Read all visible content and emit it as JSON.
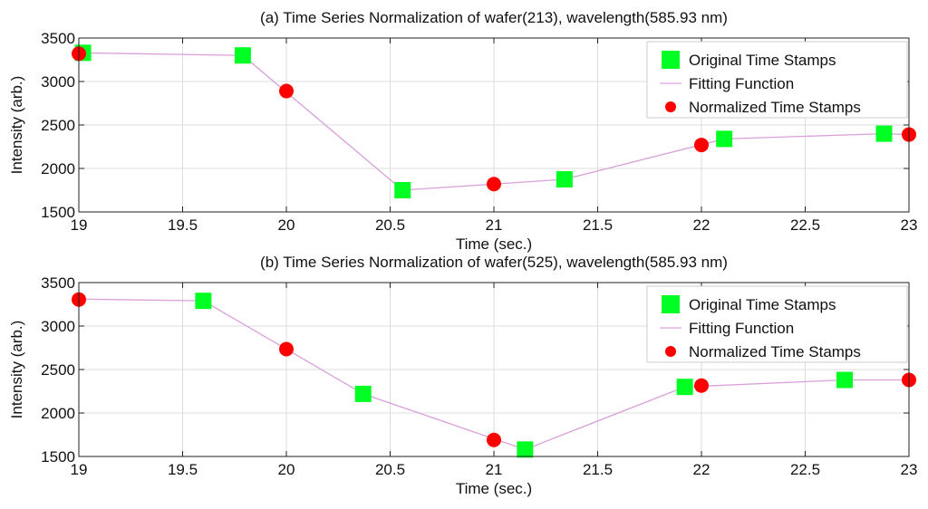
{
  "chart_data": [
    {
      "type": "line",
      "title": "(a) Time Series Normalization of wafer(213), wavelength(585.93 nm)",
      "xlabel": "Time (sec.)",
      "ylabel": "Intensity (arb.)",
      "xlim": [
        19,
        23
      ],
      "ylim": [
        1500,
        3500
      ],
      "xticks": [
        19,
        19.5,
        20,
        20.5,
        21,
        21.5,
        22,
        22.5,
        23
      ],
      "xtick_labels": [
        "19",
        "19.5",
        "20",
        "20.5",
        "21",
        "21.5",
        "22",
        "22.5",
        "23"
      ],
      "yticks": [
        1500,
        2000,
        2500,
        3000,
        3500
      ],
      "ytick_labels": [
        "1500",
        "2000",
        "2500",
        "3000",
        "3500"
      ],
      "grid": true,
      "legend_position": "top-right",
      "series": [
        {
          "name": "Original Time Stamps",
          "marker": "square",
          "color": "#00ff22",
          "x": [
            19.02,
            19.79,
            20.56,
            21.34,
            22.11,
            22.88
          ],
          "y": [
            3330,
            3300,
            1750,
            1875,
            2340,
            2400
          ]
        },
        {
          "name": "Fitting Function",
          "marker": "none",
          "color": "#d9a0d9",
          "x": [
            19.0,
            19.79,
            20.56,
            21.34,
            22.11,
            22.88,
            23.0
          ],
          "y": [
            3330,
            3300,
            1750,
            1875,
            2340,
            2400,
            2390
          ]
        },
        {
          "name": "Normalized Time Stamps",
          "marker": "circle",
          "color": "#ff0000",
          "x": [
            19,
            20,
            21,
            22,
            23
          ],
          "y": [
            3320,
            2890,
            1820,
            2270,
            2390
          ]
        }
      ]
    },
    {
      "type": "line",
      "title": "(b) Time Series Normalization of wafer(525), wavelength(585.93 nm)",
      "xlabel": "Time (sec.)",
      "ylabel": "Intensity (arb.)",
      "xlim": [
        19,
        23
      ],
      "ylim": [
        1500,
        3500
      ],
      "xticks": [
        19,
        19.5,
        20,
        20.5,
        21,
        21.5,
        22,
        22.5,
        23
      ],
      "xtick_labels": [
        "19",
        "19.5",
        "20",
        "20.5",
        "21",
        "21.5",
        "22",
        "22.5",
        "23"
      ],
      "yticks": [
        1500,
        2000,
        2500,
        3000,
        3500
      ],
      "ytick_labels": [
        "1500",
        "2000",
        "2500",
        "3000",
        "3500"
      ],
      "grid": true,
      "legend_position": "top-right",
      "series": [
        {
          "name": "Original Time Stamps",
          "marker": "square",
          "color": "#00ff22",
          "x": [
            19.6,
            20.37,
            21.15,
            21.92,
            22.69
          ],
          "y": [
            3290,
            2220,
            1580,
            2300,
            2380
          ]
        },
        {
          "name": "Fitting Function",
          "marker": "none",
          "color": "#d9a0d9",
          "x": [
            19.0,
            19.6,
            20.37,
            21.15,
            21.92,
            22.69,
            23.0
          ],
          "y": [
            3310,
            3290,
            2220,
            1580,
            2300,
            2380,
            2380
          ]
        },
        {
          "name": "Normalized Time Stamps",
          "marker": "circle",
          "color": "#ff0000",
          "x": [
            19,
            20,
            21,
            22,
            23
          ],
          "y": [
            3305,
            2735,
            1690,
            2315,
            2380
          ]
        }
      ]
    }
  ]
}
